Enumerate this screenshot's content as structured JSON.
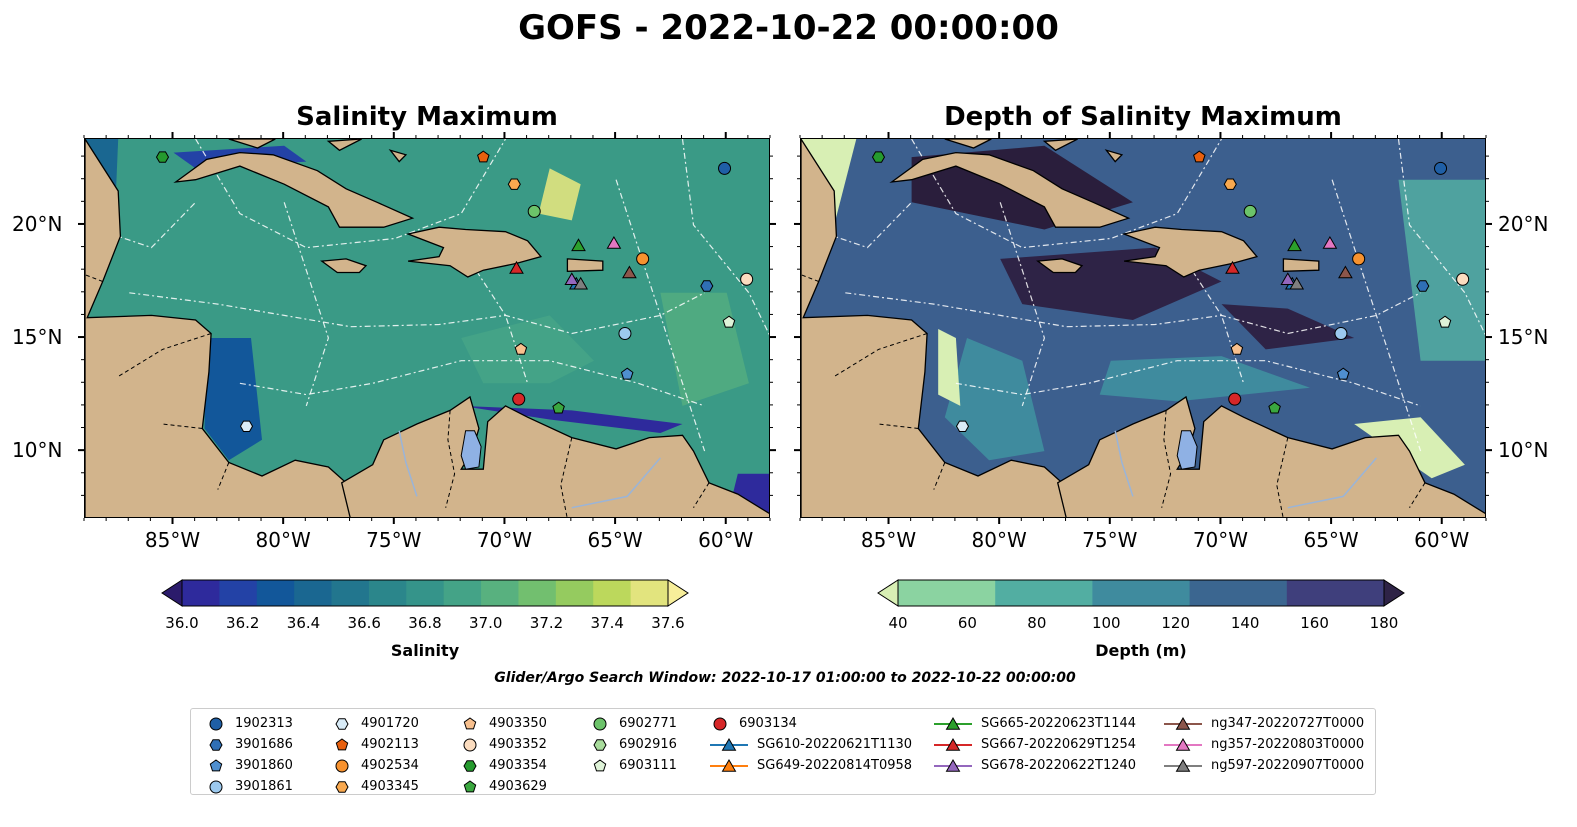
{
  "title": "GOFS - 2022-10-22 00:00:00",
  "left_panel": {
    "title": "Salinity Maximum",
    "colorbar": {
      "label": "Salinity",
      "ticks": [
        "36.0",
        "36.2",
        "36.4",
        "36.6",
        "36.8",
        "37.0",
        "37.2",
        "37.4",
        "37.6"
      ],
      "colors": [
        "#2b1b6b",
        "#2e2a9c",
        "#2342a6",
        "#12579a",
        "#1a6791",
        "#22768e",
        "#2b868b",
        "#35948a",
        "#44a387",
        "#58b17f",
        "#72bf6f",
        "#95cb5f",
        "#bcd85c",
        "#e2e47e",
        "#f7ee9a"
      ]
    },
    "ocean_color": "#3a9a86",
    "deep_color": "#2c1e6e"
  },
  "right_panel": {
    "title": "Depth of Salinity Maximum",
    "colorbar": {
      "label": "Depth (m)",
      "ticks": [
        "40",
        "60",
        "80",
        "100",
        "120",
        "140",
        "160",
        "180"
      ],
      "colors": [
        "#d8efb4",
        "#8bd3a1",
        "#52aea2",
        "#3f8b9e",
        "#3b6690",
        "#3f3f7c",
        "#2e2346"
      ]
    },
    "ocean_color": "#3c5f8e",
    "deep_color": "#2a1e3c"
  },
  "axes": {
    "x_ticks": [
      "85°W",
      "80°W",
      "75°W",
      "70°W",
      "65°W",
      "60°W"
    ],
    "y_ticks": [
      "20°N",
      "15°N",
      "10°N"
    ],
    "x_values": [
      -85,
      -80,
      -75,
      -70,
      -65,
      -60
    ],
    "y_values": [
      20,
      15,
      10
    ],
    "lon_range": [
      -89,
      -58
    ],
    "lat_range": [
      7,
      23.8
    ]
  },
  "land_color": "#d2b48c",
  "search_window": "Glider/Argo Search Window: 2022-10-17 01:00:00 to 2022-10-22 00:00:00",
  "legend": [
    [
      {
        "label": "1902313",
        "marker": "circle",
        "color": "#1f5fa6"
      },
      {
        "label": "3901686",
        "marker": "hexagon",
        "color": "#2f6fb5"
      },
      {
        "label": "3901860",
        "marker": "pentagon",
        "color": "#4f8fcf"
      },
      {
        "label": "3901861",
        "marker": "circle",
        "color": "#9cc9ee"
      }
    ],
    [
      {
        "label": "4901720",
        "marker": "hexagon",
        "color": "#d9ecf8"
      },
      {
        "label": "4902113",
        "marker": "pentagon",
        "color": "#e8600e"
      },
      {
        "label": "4902534",
        "marker": "circle",
        "color": "#f7922f"
      },
      {
        "label": "4903345",
        "marker": "hexagon",
        "color": "#f9a94f"
      }
    ],
    [
      {
        "label": "4903350",
        "marker": "pentagon",
        "color": "#f8c08e"
      },
      {
        "label": "4903352",
        "marker": "circle",
        "color": "#fbdcbf"
      },
      {
        "label": "4903354",
        "marker": "hexagon",
        "color": "#259a2e"
      },
      {
        "label": "4903629",
        "marker": "pentagon",
        "color": "#3aa73f"
      }
    ],
    [
      {
        "label": "6902771",
        "marker": "circle",
        "color": "#6cc36a"
      },
      {
        "label": "6902916",
        "marker": "hexagon",
        "color": "#a8dc9c"
      },
      {
        "label": "6903111",
        "marker": "pentagon",
        "color": "#dff3d8"
      }
    ],
    [
      {
        "label": "6903134",
        "marker": "circle",
        "color": "#d62728"
      },
      {
        "label": "SG610-20220621T1130",
        "marker": "triangle-line",
        "color": "#1f77b4"
      },
      {
        "label": "SG649-20220814T0958",
        "marker": "triangle-line",
        "color": "#ff7f0e"
      }
    ],
    [
      {
        "label": "SG665-20220623T1144",
        "marker": "triangle-line",
        "color": "#2ca02c"
      },
      {
        "label": "SG667-20220629T1254",
        "marker": "triangle-line",
        "color": "#d62728"
      },
      {
        "label": "SG678-20220622T1240",
        "marker": "triangle-line",
        "color": "#9467bd"
      }
    ],
    [
      {
        "label": "ng347-20220727T0000",
        "marker": "triangle-line",
        "color": "#8c564b"
      },
      {
        "label": "ng357-20220803T0000",
        "marker": "triangle-line",
        "color": "#e377c2"
      },
      {
        "label": "ng597-20220907T0000",
        "marker": "triangle-line",
        "color": "#7f7f7f"
      }
    ]
  ],
  "platforms": [
    {
      "id": "1902313",
      "marker": "circle",
      "color": "#1f5fa6",
      "lon": -60.1,
      "lat": 22.5
    },
    {
      "id": "3901686",
      "marker": "hexagon",
      "color": "#2f6fb5",
      "lon": -60.9,
      "lat": 17.3
    },
    {
      "id": "3901860",
      "marker": "pentagon",
      "color": "#4f8fcf",
      "lon": -64.5,
      "lat": 13.4
    },
    {
      "id": "3901861",
      "marker": "circle",
      "color": "#9cc9ee",
      "lon": -64.6,
      "lat": 15.2
    },
    {
      "id": "4901720",
      "marker": "hexagon",
      "color": "#d9ecf8",
      "lon": -81.7,
      "lat": 11.1
    },
    {
      "id": "4902113",
      "marker": "pentagon",
      "color": "#e8600e",
      "lon": -71.0,
      "lat": 23.0
    },
    {
      "id": "4902534",
      "marker": "circle",
      "color": "#f7922f",
      "lon": -63.8,
      "lat": 18.5
    },
    {
      "id": "4903350",
      "marker": "pentagon",
      "color": "#f8c08e",
      "lon": -69.3,
      "lat": 14.5
    },
    {
      "id": "4903352",
      "marker": "circle",
      "color": "#fbdcbf",
      "lon": -59.1,
      "lat": 17.6
    },
    {
      "id": "4903354",
      "marker": "hexagon",
      "color": "#259a2e",
      "lon": -85.5,
      "lat": 23.0
    },
    {
      "id": "4903629",
      "marker": "pentagon",
      "color": "#3aa73f",
      "lon": -67.6,
      "lat": 11.9
    },
    {
      "id": "6902771",
      "marker": "circle",
      "color": "#6cc36a",
      "lon": -68.7,
      "lat": 20.6
    },
    {
      "id": "4903345",
      "marker": "hexagon",
      "color": "#f9a94f",
      "lon": -69.6,
      "lat": 21.8
    },
    {
      "id": "6903111",
      "marker": "pentagon",
      "color": "#dff3d8",
      "lon": -59.9,
      "lat": 15.7
    },
    {
      "id": "6903134",
      "marker": "circle",
      "color": "#d62728",
      "lon": -69.4,
      "lat": 12.3
    },
    {
      "id": "SG610",
      "marker": "triangle",
      "color": "#1f77b4",
      "lon": -66.8,
      "lat": 17.4
    },
    {
      "id": "SG665",
      "marker": "triangle",
      "color": "#2ca02c",
      "lon": -66.7,
      "lat": 19.1
    },
    {
      "id": "SG667",
      "marker": "triangle",
      "color": "#d62728",
      "lon": -69.5,
      "lat": 18.1
    },
    {
      "id": "SG678",
      "marker": "triangle",
      "color": "#9467bd",
      "lon": -67.0,
      "lat": 17.6
    },
    {
      "id": "ng347",
      "marker": "triangle",
      "color": "#8c564b",
      "lon": -64.4,
      "lat": 17.9
    },
    {
      "id": "ng357",
      "marker": "triangle",
      "color": "#e377c2",
      "lon": -65.1,
      "lat": 19.2
    },
    {
      "id": "ng597",
      "marker": "triangle",
      "color": "#7f7f7f",
      "lon": -66.6,
      "lat": 17.4
    }
  ]
}
